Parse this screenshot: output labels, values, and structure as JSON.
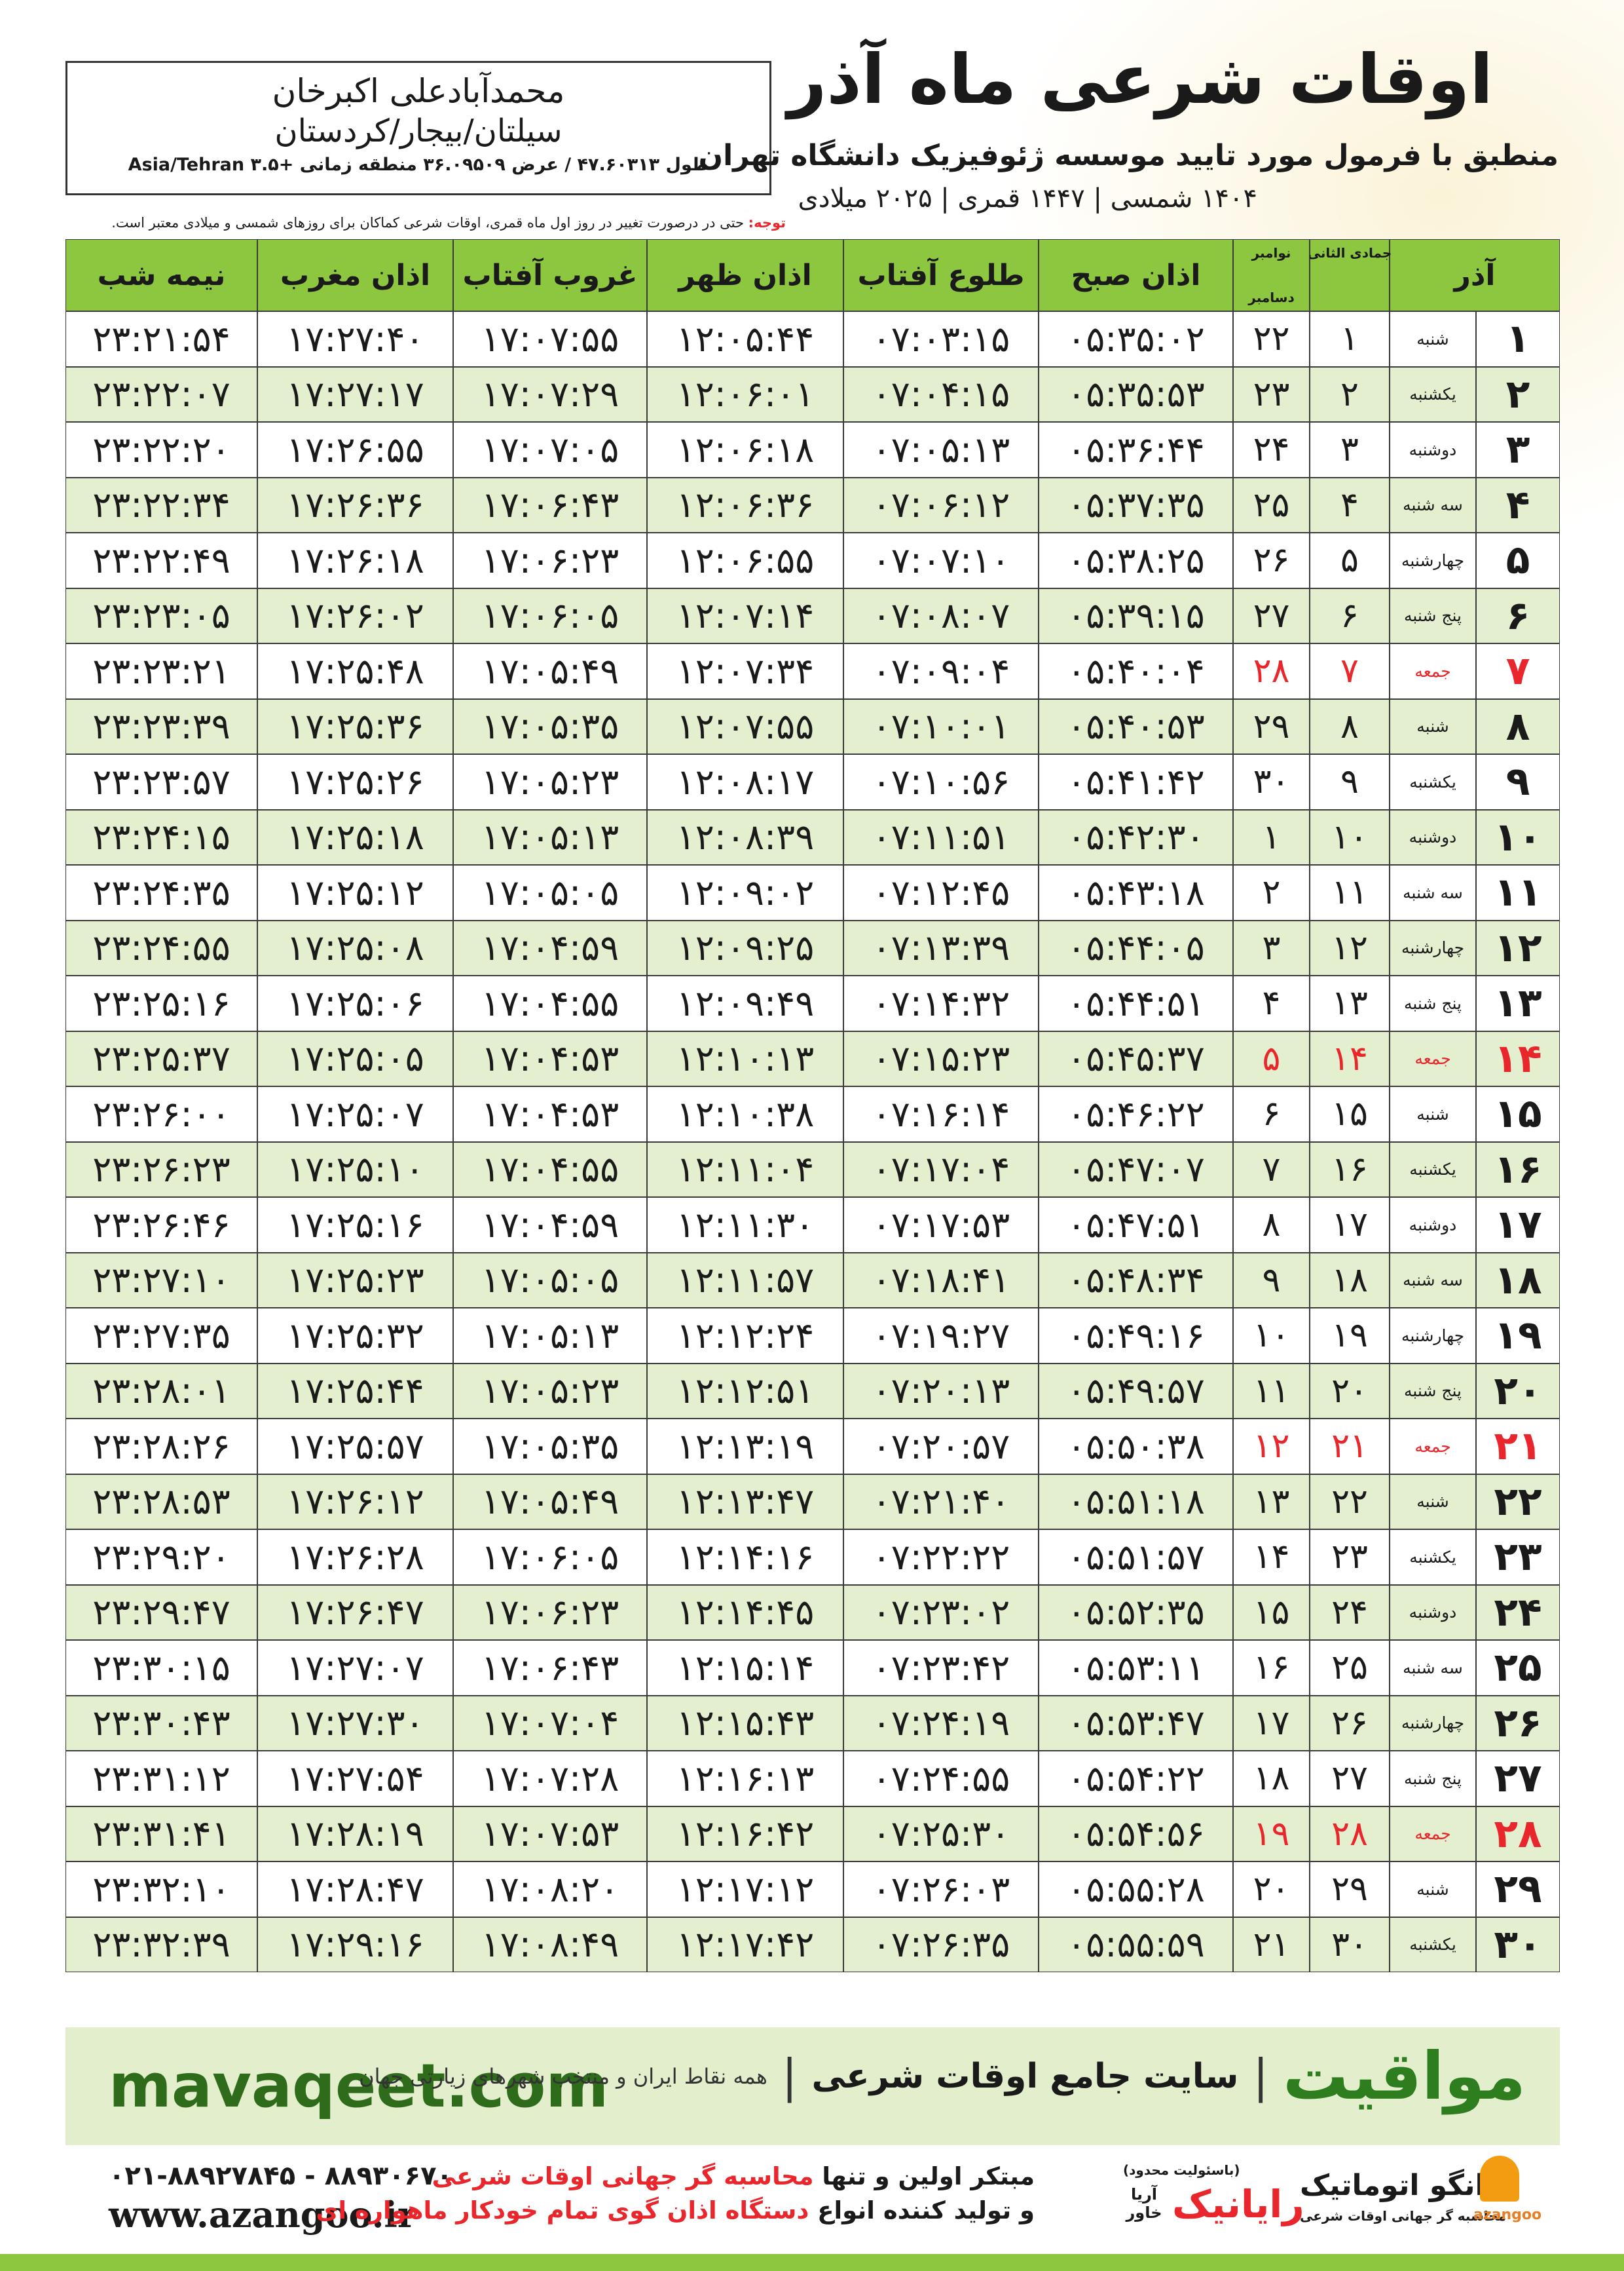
{
  "location": {
    "name": "محمدآبادعلی اکبرخان",
    "region": "سیلتان/بیجار/کردستان",
    "coords": "طول ۴۷.۶۰۳۱۳ / عرض ۳۶.۰۹۵۰۹ منطقه زمانی +۳.۵ Asia/Tehran"
  },
  "header": {
    "title": "اوقات شرعی ماه آذر",
    "subtitle": "منطبق با فرمول مورد تایید موسسه ژئوفیزیک دانشگاه تهران",
    "dates": "۱۴۰۴ شمسی | ۱۴۴۷ قمری | ۲۰۲۵ میلادی"
  },
  "note": {
    "label": "توجه:",
    "text": "حتی در درصورت تغییر در روز اول ماه قمری، اوقات شرعی کماکان برای روزهای شمسی و میلادی معتبر است."
  },
  "table": {
    "columns": [
      "آذر",
      "جمادی الثانی",
      "نوامبر",
      "دسامبر",
      "اذان صبح",
      "طلوع آفتاب",
      "اذان ظهر",
      "غروب آفتاب",
      "اذان مغرب",
      "نیمه شب"
    ],
    "holiday_rows": [
      6,
      13,
      20,
      27
    ],
    "holiday_color": "#e8262b",
    "header_color": "#8dc63f",
    "stripe_color": "#e4efcf",
    "rows": [
      [
        "۱",
        "شنبه",
        "۱",
        "۲۲",
        "۰۵:۳۵:۰۲",
        "۰۷:۰۳:۱۵",
        "۱۲:۰۵:۴۴",
        "۱۷:۰۷:۵۵",
        "۱۷:۲۷:۴۰",
        "۲۳:۲۱:۵۴"
      ],
      [
        "۲",
        "یکشنبه",
        "۲",
        "۲۳",
        "۰۵:۳۵:۵۳",
        "۰۷:۰۴:۱۵",
        "۱۲:۰۶:۰۱",
        "۱۷:۰۷:۲۹",
        "۱۷:۲۷:۱۷",
        "۲۳:۲۲:۰۷"
      ],
      [
        "۳",
        "دوشنبه",
        "۳",
        "۲۴",
        "۰۵:۳۶:۴۴",
        "۰۷:۰۵:۱۳",
        "۱۲:۰۶:۱۸",
        "۱۷:۰۷:۰۵",
        "۱۷:۲۶:۵۵",
        "۲۳:۲۲:۲۰"
      ],
      [
        "۴",
        "سه شنبه",
        "۴",
        "۲۵",
        "۰۵:۳۷:۳۵",
        "۰۷:۰۶:۱۲",
        "۱۲:۰۶:۳۶",
        "۱۷:۰۶:۴۳",
        "۱۷:۲۶:۳۶",
        "۲۳:۲۲:۳۴"
      ],
      [
        "۵",
        "چهارشنبه",
        "۵",
        "۲۶",
        "۰۵:۳۸:۲۵",
        "۰۷:۰۷:۱۰",
        "۱۲:۰۶:۵۵",
        "۱۷:۰۶:۲۳",
        "۱۷:۲۶:۱۸",
        "۲۳:۲۲:۴۹"
      ],
      [
        "۶",
        "پنج شنبه",
        "۶",
        "۲۷",
        "۰۵:۳۹:۱۵",
        "۰۷:۰۸:۰۷",
        "۱۲:۰۷:۱۴",
        "۱۷:۰۶:۰۵",
        "۱۷:۲۶:۰۲",
        "۲۳:۲۳:۰۵"
      ],
      [
        "۷",
        "جمعه",
        "۷",
        "۲۸",
        "۰۵:۴۰:۰۴",
        "۰۷:۰۹:۰۴",
        "۱۲:۰۷:۳۴",
        "۱۷:۰۵:۴۹",
        "۱۷:۲۵:۴۸",
        "۲۳:۲۳:۲۱"
      ],
      [
        "۸",
        "شنبه",
        "۸",
        "۲۹",
        "۰۵:۴۰:۵۳",
        "۰۷:۱۰:۰۱",
        "۱۲:۰۷:۵۵",
        "۱۷:۰۵:۳۵",
        "۱۷:۲۵:۳۶",
        "۲۳:۲۳:۳۹"
      ],
      [
        "۹",
        "یکشنبه",
        "۹",
        "۳۰",
        "۰۵:۴۱:۴۲",
        "۰۷:۱۰:۵۶",
        "۱۲:۰۸:۱۷",
        "۱۷:۰۵:۲۳",
        "۱۷:۲۵:۲۶",
        "۲۳:۲۳:۵۷"
      ],
      [
        "۱۰",
        "دوشنبه",
        "۱۰",
        "۱",
        "۰۵:۴۲:۳۰",
        "۰۷:۱۱:۵۱",
        "۱۲:۰۸:۳۹",
        "۱۷:۰۵:۱۳",
        "۱۷:۲۵:۱۸",
        "۲۳:۲۴:۱۵"
      ],
      [
        "۱۱",
        "سه شنبه",
        "۱۱",
        "۲",
        "۰۵:۴۳:۱۸",
        "۰۷:۱۲:۴۵",
        "۱۲:۰۹:۰۲",
        "۱۷:۰۵:۰۵",
        "۱۷:۲۵:۱۲",
        "۲۳:۲۴:۳۵"
      ],
      [
        "۱۲",
        "چهارشنبه",
        "۱۲",
        "۳",
        "۰۵:۴۴:۰۵",
        "۰۷:۱۳:۳۹",
        "۱۲:۰۹:۲۵",
        "۱۷:۰۴:۵۹",
        "۱۷:۲۵:۰۸",
        "۲۳:۲۴:۵۵"
      ],
      [
        "۱۳",
        "پنج شنبه",
        "۱۳",
        "۴",
        "۰۵:۴۴:۵۱",
        "۰۷:۱۴:۳۲",
        "۱۲:۰۹:۴۹",
        "۱۷:۰۴:۵۵",
        "۱۷:۲۵:۰۶",
        "۲۳:۲۵:۱۶"
      ],
      [
        "۱۴",
        "جمعه",
        "۱۴",
        "۵",
        "۰۵:۴۵:۳۷",
        "۰۷:۱۵:۲۳",
        "۱۲:۱۰:۱۳",
        "۱۷:۰۴:۵۳",
        "۱۷:۲۵:۰۵",
        "۲۳:۲۵:۳۷"
      ],
      [
        "۱۵",
        "شنبه",
        "۱۵",
        "۶",
        "۰۵:۴۶:۲۲",
        "۰۷:۱۶:۱۴",
        "۱۲:۱۰:۳۸",
        "۱۷:۰۴:۵۳",
        "۱۷:۲۵:۰۷",
        "۲۳:۲۶:۰۰"
      ],
      [
        "۱۶",
        "یکشنبه",
        "۱۶",
        "۷",
        "۰۵:۴۷:۰۷",
        "۰۷:۱۷:۰۴",
        "۱۲:۱۱:۰۴",
        "۱۷:۰۴:۵۵",
        "۱۷:۲۵:۱۰",
        "۲۳:۲۶:۲۳"
      ],
      [
        "۱۷",
        "دوشنبه",
        "۱۷",
        "۸",
        "۰۵:۴۷:۵۱",
        "۰۷:۱۷:۵۳",
        "۱۲:۱۱:۳۰",
        "۱۷:۰۴:۵۹",
        "۱۷:۲۵:۱۶",
        "۲۳:۲۶:۴۶"
      ],
      [
        "۱۸",
        "سه شنبه",
        "۱۸",
        "۹",
        "۰۵:۴۸:۳۴",
        "۰۷:۱۸:۴۱",
        "۱۲:۱۱:۵۷",
        "۱۷:۰۵:۰۵",
        "۱۷:۲۵:۲۳",
        "۲۳:۲۷:۱۰"
      ],
      [
        "۱۹",
        "چهارشنبه",
        "۱۹",
        "۱۰",
        "۰۵:۴۹:۱۶",
        "۰۷:۱۹:۲۷",
        "۱۲:۱۲:۲۴",
        "۱۷:۰۵:۱۳",
        "۱۷:۲۵:۳۲",
        "۲۳:۲۷:۳۵"
      ],
      [
        "۲۰",
        "پنج شنبه",
        "۲۰",
        "۱۱",
        "۰۵:۴۹:۵۷",
        "۰۷:۲۰:۱۳",
        "۱۲:۱۲:۵۱",
        "۱۷:۰۵:۲۳",
        "۱۷:۲۵:۴۴",
        "۲۳:۲۸:۰۱"
      ],
      [
        "۲۱",
        "جمعه",
        "۲۱",
        "۱۲",
        "۰۵:۵۰:۳۸",
        "۰۷:۲۰:۵۷",
        "۱۲:۱۳:۱۹",
        "۱۷:۰۵:۳۵",
        "۱۷:۲۵:۵۷",
        "۲۳:۲۸:۲۶"
      ],
      [
        "۲۲",
        "شنبه",
        "۲۲",
        "۱۳",
        "۰۵:۵۱:۱۸",
        "۰۷:۲۱:۴۰",
        "۱۲:۱۳:۴۷",
        "۱۷:۰۵:۴۹",
        "۱۷:۲۶:۱۲",
        "۲۳:۲۸:۵۳"
      ],
      [
        "۲۳",
        "یکشنبه",
        "۲۳",
        "۱۴",
        "۰۵:۵۱:۵۷",
        "۰۷:۲۲:۲۲",
        "۱۲:۱۴:۱۶",
        "۱۷:۰۶:۰۵",
        "۱۷:۲۶:۲۸",
        "۲۳:۲۹:۲۰"
      ],
      [
        "۲۴",
        "دوشنبه",
        "۲۴",
        "۱۵",
        "۰۵:۵۲:۳۵",
        "۰۷:۲۳:۰۲",
        "۱۲:۱۴:۴۵",
        "۱۷:۰۶:۲۳",
        "۱۷:۲۶:۴۷",
        "۲۳:۲۹:۴۷"
      ],
      [
        "۲۵",
        "سه شنبه",
        "۲۵",
        "۱۶",
        "۰۵:۵۳:۱۱",
        "۰۷:۲۳:۴۲",
        "۱۲:۱۵:۱۴",
        "۱۷:۰۶:۴۳",
        "۱۷:۲۷:۰۷",
        "۲۳:۳۰:۱۵"
      ],
      [
        "۲۶",
        "چهارشنبه",
        "۲۶",
        "۱۷",
        "۰۵:۵۳:۴۷",
        "۰۷:۲۴:۱۹",
        "۱۲:۱۵:۴۳",
        "۱۷:۰۷:۰۴",
        "۱۷:۲۷:۳۰",
        "۲۳:۳۰:۴۳"
      ],
      [
        "۲۷",
        "پنج شنبه",
        "۲۷",
        "۱۸",
        "۰۵:۵۴:۲۲",
        "۰۷:۲۴:۵۵",
        "۱۲:۱۶:۱۳",
        "۱۷:۰۷:۲۸",
        "۱۷:۲۷:۵۴",
        "۲۳:۳۱:۱۲"
      ],
      [
        "۲۸",
        "جمعه",
        "۲۸",
        "۱۹",
        "۰۵:۵۴:۵۶",
        "۰۷:۲۵:۳۰",
        "۱۲:۱۶:۴۲",
        "۱۷:۰۷:۵۳",
        "۱۷:۲۸:۱۹",
        "۲۳:۳۱:۴۱"
      ],
      [
        "۲۹",
        "شنبه",
        "۲۹",
        "۲۰",
        "۰۵:۵۵:۲۸",
        "۰۷:۲۶:۰۳",
        "۱۲:۱۷:۱۲",
        "۱۷:۰۸:۲۰",
        "۱۷:۲۸:۴۷",
        "۲۳:۳۲:۱۰"
      ],
      [
        "۳۰",
        "یکشنبه",
        "۳۰",
        "۲۱",
        "۰۵:۵۵:۵۹",
        "۰۷:۲۶:۳۵",
        "۱۲:۱۷:۴۲",
        "۱۷:۰۸:۴۹",
        "۱۷:۲۹:۱۶",
        "۲۳:۳۲:۳۹"
      ]
    ]
  },
  "banner": {
    "site": "mavaqeet.com",
    "brand": "مواقیت",
    "slogan": "سایت جامع اوقات شرعی",
    "tagline": "همه نقاط ایران و منتخب شهرهای زیارتی جهان"
  },
  "contact": {
    "phone": "۰۲۱-۸۸۹۲۷۸۴۵ - ۸۸۹۳۰۶۷۰",
    "web": "www.azangoo.ir",
    "line1": [
      "مبتکر اولین و تنها",
      "محاسبه گر جهانی اوقات شرعی"
    ],
    "line2": [
      "و تولید کننده انواع",
      "دستگاه اذان گوی تمام خودکار ماهواره ای"
    ]
  },
  "logos": {
    "rayanik": "رایانیک",
    "aria": "آریا خاور",
    "limited": "(باسئولیت محدود)",
    "azangoo_fa": "اذانگو اتوماتیک",
    "azangoo_sub": "محاسبه گر جهانی اوقات شرعی",
    "azangoo_en": "azangoo"
  }
}
